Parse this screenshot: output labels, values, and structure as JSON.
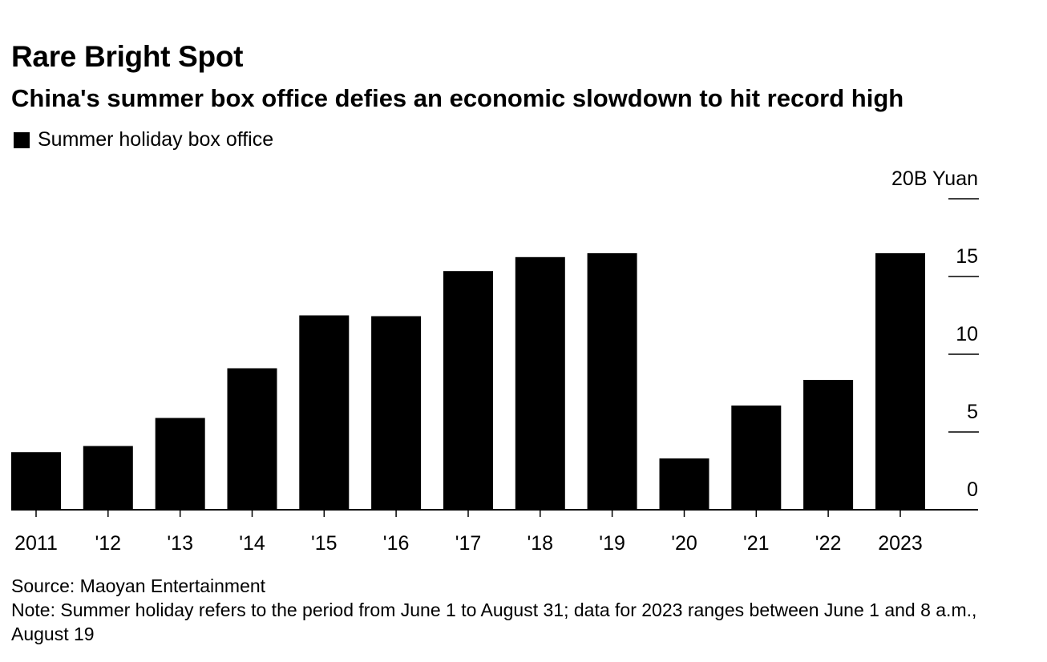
{
  "header": {
    "title": "Rare Bright Spot",
    "subtitle": "China's summer box office defies an economic slowdown to hit record high"
  },
  "legend": {
    "label": "Summer holiday box office",
    "color": "#000000"
  },
  "footer": {
    "source": "Source: Maoyan Entertainment",
    "note": "Note: Summer holiday refers to the period from June 1 to August 31; data for 2023 ranges between June 1 and 8 a.m., August 19"
  },
  "chart_data": {
    "type": "bar",
    "title": "Rare Bright Spot",
    "subtitle": "China's summer box office defies an economic slowdown to hit record high",
    "xlabel": "",
    "ylabel": "",
    "y_unit_label": "20B Yuan",
    "categories": [
      "2011",
      "'12",
      "'13",
      "'14",
      "'15",
      "'16",
      "'17",
      "'18",
      "'19",
      "'20",
      "'21",
      "'22",
      "2023"
    ],
    "series": [
      {
        "name": "Summer holiday box office",
        "color": "#000000",
        "values": [
          3.7,
          4.1,
          5.9,
          9.1,
          12.5,
          12.45,
          15.35,
          16.25,
          16.5,
          3.3,
          6.7,
          8.35,
          16.5
        ]
      }
    ],
    "ylim": [
      0,
      20
    ],
    "yticks": [
      0,
      5,
      10,
      15,
      20
    ],
    "ytick_labels": [
      "0",
      "5",
      "10",
      "15",
      "20B Yuan"
    ],
    "grid": false,
    "axis_position": "right",
    "legend_position": "top-left"
  }
}
